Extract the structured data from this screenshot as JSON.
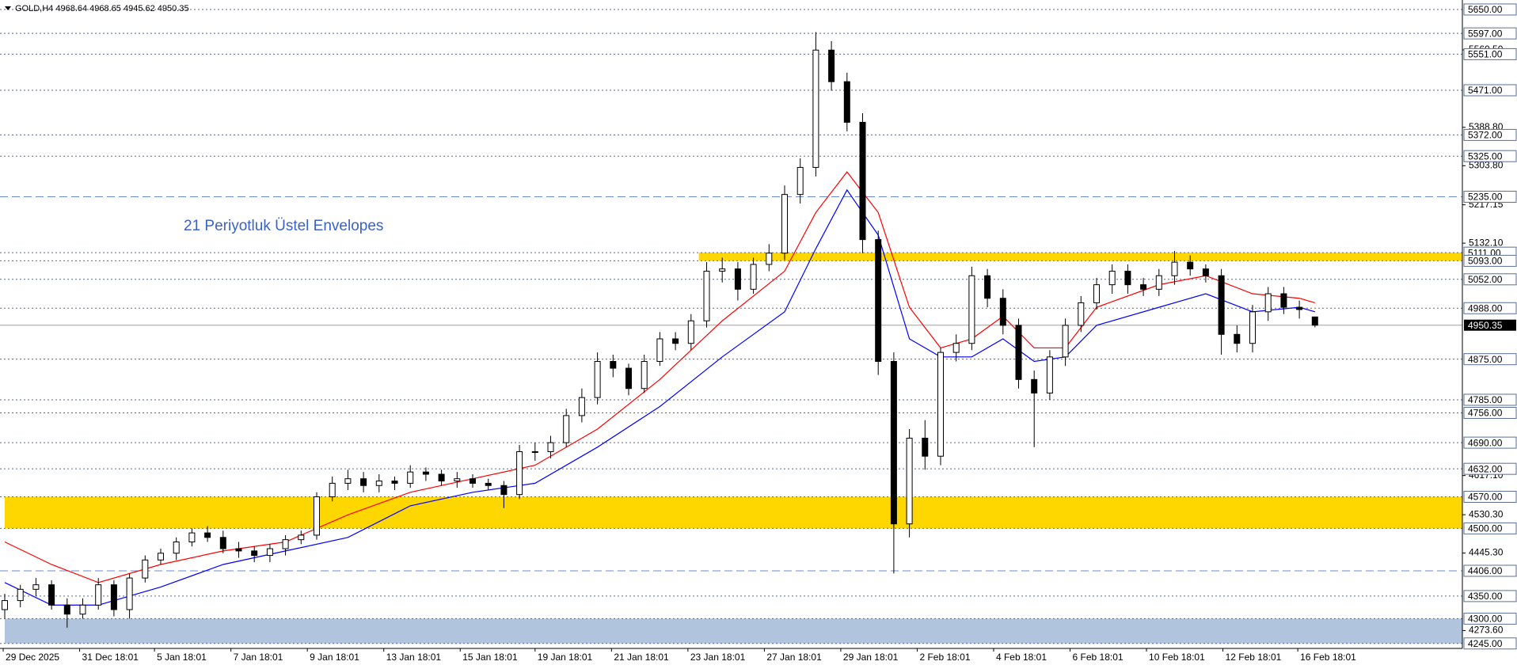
{
  "chart_data": {
    "type": "candlestick",
    "title": "GOLD,H4  4968.64 4968.65 4945.62 4950.35",
    "annotation": "21 Periyotluk Üstel Envelopes",
    "ylim": [
      4234,
      5671
    ],
    "open": [
      4320,
      4340,
      4365,
      4375,
      4330,
      4310,
      4330,
      4375,
      4320,
      4390,
      4430,
      4445,
      4470,
      4490,
      4480,
      4455,
      4450,
      4440,
      4455,
      4475,
      4485,
      4570,
      4600,
      4610,
      4595,
      4605,
      4600,
      4625,
      4620,
      4605,
      4610,
      4600,
      4595,
      4575,
      4670,
      4670,
      4690,
      4750,
      4790,
      4870,
      4855,
      4810,
      4870,
      4920,
      4910,
      4960,
      5070,
      5075,
      5030,
      5085,
      5110,
      5240,
      5300,
      5560,
      5490,
      5400,
      5140,
      4870,
      4510,
      4700,
      4660,
      4890,
      4910,
      5060,
      5010,
      4950,
      4830,
      4800,
      4880,
      4950,
      5000,
      5040,
      5070,
      5040,
      5030,
      5060,
      5090,
      5075,
      5060,
      4930,
      4910,
      4980,
      5020,
      4990,
      4968.64
    ],
    "high": [
      4355,
      4375,
      4390,
      4385,
      4345,
      4345,
      4390,
      4385,
      4400,
      4440,
      4455,
      4480,
      4500,
      4505,
      4495,
      4470,
      4460,
      4465,
      4485,
      4495,
      4580,
      4615,
      4630,
      4625,
      4620,
      4615,
      4640,
      4635,
      4630,
      4625,
      4620,
      4610,
      4605,
      4685,
      4690,
      4705,
      4765,
      4810,
      4890,
      4885,
      4865,
      4885,
      4935,
      4935,
      4975,
      5090,
      5100,
      5090,
      5100,
      5130,
      5260,
      5320,
      5600,
      5580,
      5510,
      5420,
      5160,
      4890,
      4720,
      4740,
      4900,
      4930,
      5080,
      5075,
      5030,
      4965,
      4850,
      4895,
      4965,
      5015,
      5055,
      5085,
      5085,
      5055,
      5075,
      5115,
      5105,
      5085,
      5075,
      4950,
      4995,
      5035,
      5035,
      5005,
      4968.65
    ],
    "low": [
      4300,
      4325,
      4350,
      4320,
      4280,
      4300,
      4320,
      4305,
      4300,
      4380,
      4420,
      4430,
      4460,
      4470,
      4445,
      4435,
      4425,
      4425,
      4440,
      4465,
      4475,
      4560,
      4585,
      4580,
      4580,
      4585,
      4590,
      4605,
      4595,
      4590,
      4590,
      4585,
      4545,
      4565,
      4650,
      4655,
      4680,
      4735,
      4775,
      4835,
      4795,
      4800,
      4860,
      4895,
      4895,
      4945,
      5045,
      5005,
      5020,
      5070,
      5095,
      5220,
      5280,
      5470,
      5380,
      5110,
      4840,
      4400,
      4480,
      4630,
      4640,
      4870,
      4895,
      4990,
      4930,
      4810,
      4680,
      4785,
      4860,
      4935,
      4985,
      5020,
      5020,
      5015,
      5015,
      5040,
      5060,
      5045,
      4885,
      4890,
      4890,
      4960,
      4975,
      4965,
      4945.62
    ],
    "close": [
      4340,
      4365,
      4375,
      4330,
      4310,
      4330,
      4375,
      4320,
      4390,
      4430,
      4445,
      4470,
      4490,
      4480,
      4455,
      4450,
      4440,
      4455,
      4475,
      4485,
      4570,
      4600,
      4610,
      4595,
      4605,
      4600,
      4625,
      4620,
      4605,
      4610,
      4600,
      4595,
      4575,
      4670,
      4670,
      4690,
      4750,
      4790,
      4870,
      4855,
      4810,
      4870,
      4920,
      4910,
      4960,
      5070,
      5075,
      5030,
      5085,
      5110,
      5240,
      5300,
      5560,
      5490,
      5400,
      5140,
      4870,
      4510,
      4700,
      4660,
      4890,
      4910,
      5060,
      5010,
      4950,
      4830,
      4800,
      4880,
      4950,
      5000,
      5040,
      5070,
      5040,
      5030,
      5060,
      5090,
      5075,
      5060,
      4930,
      4910,
      4980,
      5020,
      4990,
      4985,
      4950.35
    ],
    "envelopes": [
      {
        "color": "#ff0000",
        "x": [
          0,
          3,
          6,
          10,
          14,
          18,
          22,
          26,
          30,
          34,
          38,
          42,
          46,
          50,
          52,
          54,
          56,
          58,
          60,
          62,
          64,
          66,
          68,
          70,
          74,
          77,
          80,
          83,
          84
        ],
        "values": [
          4470,
          4420,
          4380,
          4420,
          4450,
          4470,
          4530,
          4580,
          4610,
          4640,
          4720,
          4830,
          4960,
          5070,
          5200,
          5290,
          5200,
          4990,
          4900,
          4920,
          4970,
          4900,
          4900,
          4990,
          5040,
          5060,
          5020,
          5010,
          5000
        ]
      },
      {
        "color": "#0000ff",
        "x": [
          0,
          3,
          6,
          10,
          14,
          18,
          22,
          26,
          30,
          34,
          38,
          42,
          46,
          50,
          52,
          54,
          56,
          58,
          60,
          62,
          64,
          66,
          68,
          70,
          74,
          77,
          80,
          83,
          84
        ],
        "values": [
          4380,
          4330,
          4330,
          4370,
          4420,
          4450,
          4480,
          4550,
          4580,
          4600,
          4680,
          4770,
          4880,
          4980,
          5120,
          5250,
          5150,
          4920,
          4880,
          4880,
          4920,
          4870,
          4880,
          4950,
          4990,
          5020,
          4980,
          4990,
          4980
        ]
      }
    ],
    "zones": [
      {
        "from": 5093,
        "to": 5111,
        "x_start": 44.5,
        "color": "#ffd700"
      },
      {
        "from": 4500,
        "to": 4570,
        "x_start": 0,
        "color": "#ffd700"
      },
      {
        "from": 4245,
        "to": 4300,
        "x_start": 0,
        "color": "#b0c4de"
      }
    ],
    "levels": [
      {
        "value": 5650,
        "label": "5650.00"
      },
      {
        "value": 5597,
        "label": "5597.00"
      },
      {
        "value": 5551,
        "label": "5551.00"
      },
      {
        "value": 5471,
        "label": "5471.00"
      },
      {
        "value": 5372,
        "label": "5372.00"
      },
      {
        "value": 5325,
        "label": "5325.00"
      },
      {
        "value": 5235,
        "label": "5235.00",
        "style": "dashed"
      },
      {
        "value": 5111,
        "label": "5111.00"
      },
      {
        "value": 5093,
        "label": "5093.00"
      },
      {
        "value": 5052,
        "label": "5052.00"
      },
      {
        "value": 4988,
        "label": "4988.00"
      },
      {
        "value": 4875,
        "label": "4875.00"
      },
      {
        "value": 4785,
        "label": "4785.00"
      },
      {
        "value": 4756,
        "label": "4756.00"
      },
      {
        "value": 4690,
        "label": "4690.00"
      },
      {
        "value": 4632,
        "label": "4632.00"
      },
      {
        "value": 4570,
        "label": "4570.00"
      },
      {
        "value": 4500,
        "label": "4500.00"
      },
      {
        "value": 4406,
        "label": "4406.00",
        "style": "dashed"
      },
      {
        "value": 4350,
        "label": "4350.00"
      },
      {
        "value": 4300,
        "label": "4300.00"
      },
      {
        "value": 4245,
        "label": "4245.00"
      }
    ],
    "last_price": {
      "value": 4950.35,
      "label": "4950.35"
    },
    "yticks": [
      {
        "value": 5560.5,
        "label": "5560.50"
      },
      {
        "value": 5388.8,
        "label": "5388.80"
      },
      {
        "value": 5303.8,
        "label": "5303.80"
      },
      {
        "value": 5217.15,
        "label": "5217.15"
      },
      {
        "value": 5132.1,
        "label": "5132.10"
      },
      {
        "value": 4617.1,
        "label": "4617.10"
      },
      {
        "value": 4530.3,
        "label": "4530.30"
      },
      {
        "value": 4445.3,
        "label": "4445.30"
      },
      {
        "value": 4273.6,
        "label": "4273.60"
      }
    ],
    "xticks": [
      {
        "value": -0.1,
        "label": "29 Dec 2025"
      },
      {
        "value": 4.8,
        "label": "31 Dec 18:01"
      },
      {
        "value": 9.6,
        "label": "5 Jan 18:01"
      },
      {
        "value": 14.5,
        "label": "7 Jan 18:01"
      },
      {
        "value": 19.4,
        "label": "9 Jan 18:01"
      },
      {
        "value": 24.3,
        "label": "13 Jan 18:01"
      },
      {
        "value": 29.2,
        "label": "15 Jan 18:01"
      },
      {
        "value": 34.0,
        "label": "19 Jan 18:01"
      },
      {
        "value": 38.9,
        "label": "21 Jan 18:01"
      },
      {
        "value": 43.8,
        "label": "23 Jan 18:01"
      },
      {
        "value": 48.7,
        "label": "27 Jan 18:01"
      },
      {
        "value": 53.6,
        "label": "29 Jan 18:01"
      },
      {
        "value": 58.5,
        "label": "2 Feb 18:01"
      },
      {
        "value": 63.4,
        "label": "4 Feb 18:01"
      },
      {
        "value": 68.3,
        "label": "6 Feb 18:01"
      },
      {
        "value": 73.2,
        "label": "10 Feb 18:01"
      },
      {
        "value": 78.1,
        "label": "12 Feb 18:01"
      },
      {
        "value": 82.9,
        "label": "16 Feb 18:01"
      }
    ]
  }
}
